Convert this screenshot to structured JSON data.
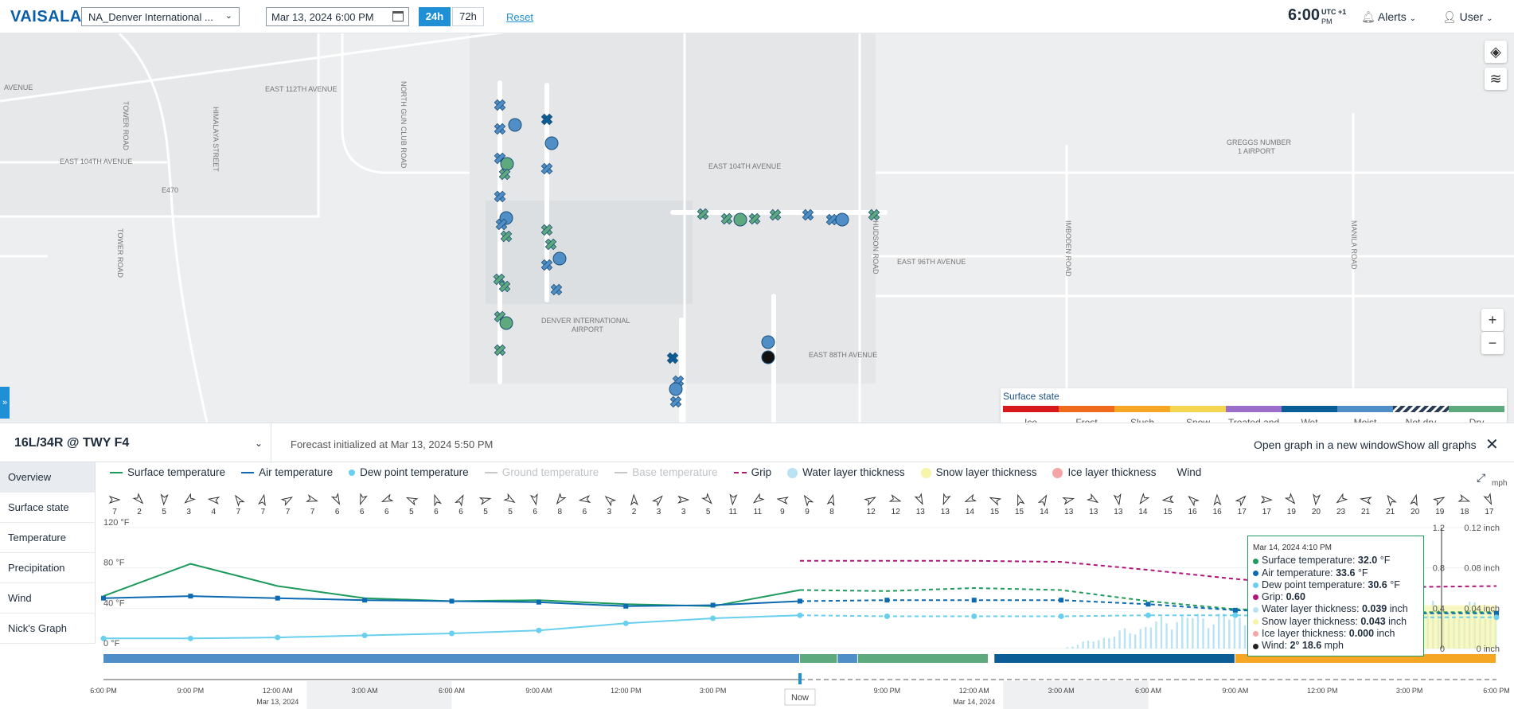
{
  "topbar": {
    "logo": "VAISALA",
    "airport_select": "NA_Denver International ...",
    "datetime": "Mar 13, 2024 6:00 PM",
    "range_24": "24h",
    "range_72": "72h",
    "reset": "Reset",
    "clock_time": "6:00",
    "clock_tz": "UTC +1",
    "clock_ampm": "PM",
    "alerts": "Alerts",
    "user": "User"
  },
  "map": {
    "labels": {
      "avenue": "AVENUE",
      "e112": "EAST 112TH AVENUE",
      "e104a": "EAST 104TH AVENUE",
      "e104b": "EAST 104TH AVENUE",
      "e96": "EAST 96TH AVENUE",
      "e88": "EAST 88TH AVENUE",
      "e470": "E470",
      "tower1": "TOWER ROAD",
      "tower2": "TOWER ROAD",
      "himalaya": "HIMALAYA STREET",
      "ngc": "NORTH GUN CLUB ROAD",
      "hudson": "HUDSON ROAD",
      "imboden": "IMBODEN ROAD",
      "manila": "MANILA ROAD",
      "greggs1": "GREGGS NUMBER",
      "greggs2": "1 AIRPORT",
      "dia1": "DENVER INTERNATIONAL",
      "dia2": "AIRPORT"
    },
    "zoom_in": "+",
    "zoom_out": "−",
    "legend": {
      "title": "Surface state",
      "items": [
        {
          "label": "Ice",
          "color": "#d7191c"
        },
        {
          "label": "Frost",
          "color": "#f06a1d"
        },
        {
          "label": "Slush",
          "color": "#f5a623"
        },
        {
          "label": "Snow",
          "color": "#f4d651"
        },
        {
          "label": "Treated and wet",
          "color": "#9b6fc9"
        },
        {
          "label": "Wet",
          "color": "#0b5d96"
        },
        {
          "label": "Moist",
          "color": "#4f8ec7"
        },
        {
          "label": "Not dry",
          "color": "#2a3d55"
        },
        {
          "label": "Dry",
          "color": "#5fa97e"
        }
      ]
    }
  },
  "panel": {
    "station": "16L/34R @ TWY F4",
    "forecast": "Forecast initialized at Mar 13, 2024 5:50 PM",
    "open_graph": "Open graph in a new window",
    "show_all": "Show all graphs",
    "close": "✕",
    "nav": [
      "Overview",
      "Surface state",
      "Temperature",
      "Precipitation",
      "Wind",
      "Nick's Graph"
    ],
    "legend": [
      {
        "label": "Surface temperature",
        "color": "#1e9b5c"
      },
      {
        "label": "Air temperature",
        "color": "#0b6ab0"
      },
      {
        "label": "Dew point temperature",
        "color": "#69cfee"
      },
      {
        "label": "Ground temperature",
        "color": "#c8c8c8"
      },
      {
        "label": "Base temperature",
        "color": "#c8c8c8"
      },
      {
        "label": "Grip",
        "color": "#b0157a"
      },
      {
        "label": "Water layer thickness",
        "color": "#b9e3f3"
      },
      {
        "label": "Snow layer thickness",
        "color": "#f7f3a8"
      },
      {
        "label": "Ice layer thickness",
        "color": "#f4a6a6"
      },
      {
        "label": "Wind",
        "color": "#333333"
      }
    ],
    "mph": "mph"
  },
  "chart_data": {
    "type": "line",
    "y_left_unit": "°F",
    "y_left_ticks": [
      "120 °F",
      "80 °F",
      "40 °F",
      "0 °F"
    ],
    "ylim": [
      0,
      120
    ],
    "y_grip_ticks": [
      "1.2",
      "0.8",
      "0.4",
      "0"
    ],
    "y_thickness_ticks": [
      "0.12 inch",
      "0.08 inch",
      "0.04 inch",
      "0 inch"
    ],
    "x_ticks": [
      "6:00 PM",
      "9:00 PM",
      "12:00 AM",
      "3:00 AM",
      "6:00 AM",
      "9:00 AM",
      "12:00 PM",
      "3:00 PM",
      "Now",
      "9:00 PM",
      "12:00 AM",
      "3:00 AM",
      "6:00 AM",
      "9:00 AM",
      "12:00 PM",
      "3:00 PM",
      "6:00 PM"
    ],
    "x_dates": {
      "d1": "Mar 13, 2024",
      "d2": "Mar 14, 2024"
    },
    "hours": [
      0,
      3,
      6,
      9,
      12,
      15,
      18,
      21,
      24,
      27,
      30,
      33,
      36,
      39,
      42,
      45,
      48
    ],
    "series": [
      {
        "name": "Surface temperature",
        "values": [
          52,
          84,
          62,
          50,
          47,
          48,
          44,
          42,
          58,
          57,
          60,
          58,
          47,
          39,
          37,
          36,
          36
        ]
      },
      {
        "name": "Air temperature",
        "values": [
          50,
          52,
          50,
          48,
          47,
          46,
          42,
          43,
          47,
          48,
          48,
          48,
          44,
          38,
          36,
          35,
          35
        ]
      },
      {
        "name": "Dew point temperature",
        "values": [
          10,
          10,
          11,
          13,
          15,
          18,
          25,
          30,
          33,
          32,
          32,
          32,
          33,
          33,
          32,
          31,
          31
        ]
      },
      {
        "name": "Grip",
        "values": [
          null,
          null,
          null,
          null,
          null,
          null,
          null,
          null,
          0.87,
          0.87,
          0.87,
          0.86,
          0.78,
          0.69,
          0.62,
          0.61,
          0.62
        ]
      }
    ],
    "wind_speeds": [
      7,
      2,
      5,
      3,
      4,
      7,
      7,
      7,
      7,
      6,
      6,
      6,
      5,
      6,
      6,
      5,
      5,
      6,
      8,
      6,
      3,
      2,
      3,
      3,
      5,
      11,
      11,
      9,
      9,
      8,
      12,
      12,
      13,
      13,
      14,
      15,
      15,
      14,
      13,
      13,
      13,
      14,
      15,
      16,
      16,
      17,
      17,
      19,
      20,
      23,
      21,
      21,
      20,
      19,
      18,
      17
    ],
    "surface_state_bar": [
      "Moist",
      "Dry",
      "Moist",
      "Dry",
      "Wet",
      "Slush"
    ],
    "tooltip": {
      "header": "Mar 14, 2024 4:10 PM",
      "rows": [
        {
          "label": "Surface temperature:",
          "value": "32.0",
          "unit": "°F",
          "color": "#1e9b5c"
        },
        {
          "label": "Air temperature:",
          "value": "33.6",
          "unit": "°F",
          "color": "#0b6ab0"
        },
        {
          "label": "Dew point temperature:",
          "value": "30.6",
          "unit": "°F",
          "color": "#69cfee"
        },
        {
          "label": "Grip:",
          "value": "0.60",
          "unit": "",
          "color": "#b0157a"
        },
        {
          "label": "Water layer thickness:",
          "value": "0.039",
          "unit": "inch",
          "color": "#b9e3f3"
        },
        {
          "label": "Snow layer thickness:",
          "value": "0.043",
          "unit": "inch",
          "color": "#f7f3a8"
        },
        {
          "label": "Ice layer thickness:",
          "value": "0.000",
          "unit": "inch",
          "color": "#f4a6a6"
        },
        {
          "label": "Wind:",
          "value": "2° 18.6",
          "unit": "mph",
          "color": "#222222"
        }
      ]
    }
  }
}
